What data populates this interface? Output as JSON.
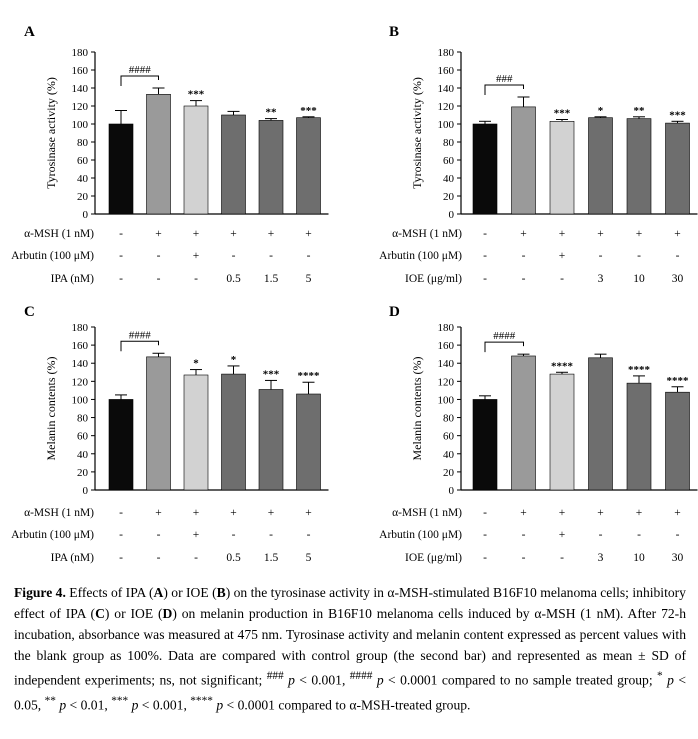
{
  "chart_data": [
    {
      "panel": "A",
      "type": "bar",
      "ylabel": "Tyrosinase activity (%)",
      "ylim": [
        0,
        180
      ],
      "yticks": [
        0,
        20,
        40,
        60,
        80,
        100,
        120,
        140,
        160,
        180
      ],
      "values": [
        100,
        133,
        120,
        110,
        104,
        107
      ],
      "errors": [
        15,
        7,
        6,
        4,
        2,
        1
      ],
      "bar_colors": [
        "#0a0a0a",
        "#9a9a9a",
        "#d2d2d2",
        "#6e6e6e",
        "#6e6e6e",
        "#6e6e6e"
      ],
      "significance": [
        "",
        "",
        "***",
        "",
        "**",
        "***"
      ],
      "bracket": {
        "from": 0,
        "to": 1,
        "label": "####"
      },
      "rows": [
        {
          "label": "α-MSH (1 nM)",
          "cells": [
            "-",
            "+",
            "+",
            "+",
            "+",
            "+"
          ]
        },
        {
          "label": "Arbutin (100 μM)",
          "cells": [
            "-",
            "-",
            "+",
            "-",
            "-",
            "-"
          ]
        },
        {
          "label": "IPA (nM)",
          "cells": [
            "-",
            "-",
            "-",
            "0.5",
            "1.5",
            "5"
          ]
        }
      ]
    },
    {
      "panel": "B",
      "type": "bar",
      "ylabel": "Tyrosinase activity (%)",
      "ylim": [
        0,
        180
      ],
      "yticks": [
        0,
        20,
        40,
        60,
        80,
        100,
        120,
        140,
        160,
        180
      ],
      "values": [
        100,
        119,
        103,
        107,
        106,
        101
      ],
      "errors": [
        3,
        11,
        2,
        1,
        2,
        2
      ],
      "bar_colors": [
        "#0a0a0a",
        "#9a9a9a",
        "#d2d2d2",
        "#6e6e6e",
        "#6e6e6e",
        "#6e6e6e"
      ],
      "significance": [
        "",
        "",
        "***",
        "*",
        "**",
        "***"
      ],
      "bracket": {
        "from": 0,
        "to": 1,
        "label": "###"
      },
      "rows": [
        {
          "label": "α-MSH (1 nM)",
          "cells": [
            "-",
            "+",
            "+",
            "+",
            "+",
            "+"
          ]
        },
        {
          "label": "Arbutin (100 μM)",
          "cells": [
            "-",
            "-",
            "+",
            "-",
            "-",
            "-"
          ]
        },
        {
          "label": "IOE (μg/ml)",
          "cells": [
            "-",
            "-",
            "-",
            "3",
            "10",
            "30"
          ]
        }
      ]
    },
    {
      "panel": "C",
      "type": "bar",
      "ylabel": "Melanin contents (%)",
      "ylim": [
        0,
        180
      ],
      "yticks": [
        0,
        20,
        40,
        60,
        80,
        100,
        120,
        140,
        160,
        180
      ],
      "values": [
        100,
        147,
        127,
        128,
        111,
        106
      ],
      "errors": [
        5,
        4,
        6,
        9,
        10,
        13
      ],
      "bar_colors": [
        "#0a0a0a",
        "#9a9a9a",
        "#d2d2d2",
        "#6e6e6e",
        "#6e6e6e",
        "#6e6e6e"
      ],
      "significance": [
        "",
        "",
        "*",
        "*",
        "***",
        "****"
      ],
      "bracket": {
        "from": 0,
        "to": 1,
        "label": "####"
      },
      "rows": [
        {
          "label": "α-MSH (1 nM)",
          "cells": [
            "-",
            "+",
            "+",
            "+",
            "+",
            "+"
          ]
        },
        {
          "label": "Arbutin (100 μM)",
          "cells": [
            "-",
            "-",
            "+",
            "-",
            "-",
            "-"
          ]
        },
        {
          "label": "IPA (nM)",
          "cells": [
            "-",
            "-",
            "-",
            "0.5",
            "1.5",
            "5"
          ]
        }
      ]
    },
    {
      "panel": "D",
      "type": "bar",
      "ylabel": "Melanin contents (%)",
      "ylim": [
        0,
        180
      ],
      "yticks": [
        0,
        20,
        40,
        60,
        80,
        100,
        120,
        140,
        160,
        180
      ],
      "values": [
        100,
        148,
        128,
        146,
        118,
        108
      ],
      "errors": [
        4,
        2,
        2,
        4,
        8,
        6
      ],
      "bar_colors": [
        "#0a0a0a",
        "#9a9a9a",
        "#d2d2d2",
        "#6e6e6e",
        "#6e6e6e",
        "#6e6e6e"
      ],
      "significance": [
        "",
        "",
        "****",
        "",
        "****",
        "****"
      ],
      "bracket": {
        "from": 0,
        "to": 1,
        "label": "####"
      },
      "rows": [
        {
          "label": "α-MSH (1 nM)",
          "cells": [
            "-",
            "+",
            "+",
            "+",
            "+",
            "+"
          ]
        },
        {
          "label": "Arbutin (100 μM)",
          "cells": [
            "-",
            "-",
            "+",
            "-",
            "-",
            "-"
          ]
        },
        {
          "label": "IOE (μg/ml)",
          "cells": [
            "-",
            "-",
            "-",
            "3",
            "10",
            "30"
          ]
        }
      ]
    }
  ],
  "caption": {
    "label": "Figure 4.",
    "t1": " Effects of IPA (",
    "t2": "A",
    "t3": ") or IOE (",
    "t4": "B",
    "t5": ") on the tyrosinase activity in α-MSH-stimulated B16F10 melanoma cells; inhibitory effect of IPA (",
    "t6": "C",
    "t7": ") or IOE (",
    "t8": "D",
    "t9": ") on melanin production in B16F10 melanoma cells induced by α-MSH (1 nM). After 72-h incubation, absorbance was measured at 475 nm. Tyrosinase activity and melanin content expressed as percent values with the blank group as 100%. Data are compared with control group (the second bar) and represented as mean ± SD of independent experiments; ns, not significant; ",
    "t10": "###",
    "t11": " ",
    "t12": "p",
    "t13": " < 0.001, ",
    "t14": "####",
    "t15": " ",
    "t16": "p",
    "t17": " < 0.0001 compared to no sample treated group; ",
    "t18": "*",
    "t19": " ",
    "t20": "p",
    "t21": " < 0.05, ",
    "t22": "**",
    "t23": " ",
    "t24": "p",
    "t25": " < 0.01, ",
    "t26": "***",
    "t27": " ",
    "t28": "p",
    "t29": " < 0.001, ",
    "t30": "****",
    "t31": " ",
    "t32": "p",
    "t33": " < 0.0001 compared to α-MSH-treated group."
  }
}
